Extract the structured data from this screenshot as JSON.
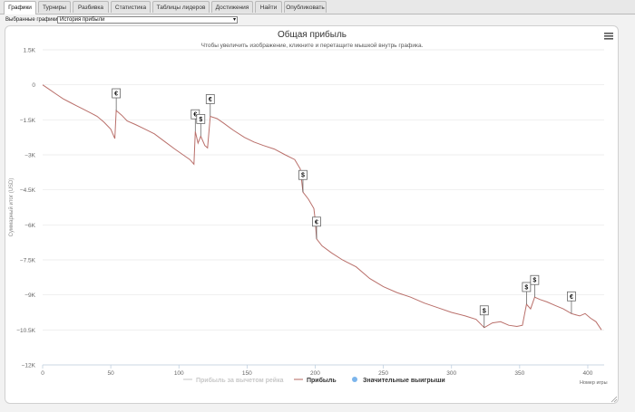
{
  "tabs": [
    {
      "label": "Графики",
      "active": true
    },
    {
      "label": "Турниры",
      "active": false
    },
    {
      "label": "Разбивка",
      "active": false
    },
    {
      "label": "Статистика",
      "active": false
    },
    {
      "label": "Таблицы лидеров",
      "active": false
    },
    {
      "label": "Достижения",
      "active": false
    },
    {
      "label": "Найти",
      "active": false
    },
    {
      "label": "Опубликовать",
      "active": false
    }
  ],
  "selector": {
    "label": "Выбранные графики:",
    "value": "История прибыли"
  },
  "chart_data": {
    "type": "line",
    "title": "Общая прибыль",
    "subtitle": "Чтобы увеличить изображение, кликните и перетащите мышкой внутрь графика.",
    "xlabel": "Номер игры",
    "ylabel": "Суммарный итог (USD)",
    "xlim": [
      0,
      412
    ],
    "ylim": [
      -12000,
      1500
    ],
    "xticks": [
      0,
      50,
      100,
      150,
      200,
      250,
      300,
      350,
      400
    ],
    "yticks": [
      1500,
      0,
      -1500,
      -3000,
      -4500,
      -6000,
      -7500,
      -9000,
      -10500,
      -12000
    ],
    "ytick_labels": [
      "1.5K",
      "0",
      "−1.5K",
      "−3K",
      "−4.5K",
      "−6K",
      "−7.5K",
      "−9K",
      "−10.5K",
      "−12K"
    ],
    "grid": true,
    "legend_placement": "bottom-center",
    "legend": [
      {
        "name": "Прибыль за вычетом рейка",
        "style": "line",
        "color": "#cfcfcf",
        "disabled": true
      },
      {
        "name": "Прибыль",
        "style": "line",
        "color": "#c0807a",
        "disabled": false
      },
      {
        "name": "Значительные выигрыши",
        "style": "dot",
        "color": "#7cb5ec",
        "disabled": false
      }
    ],
    "series": [
      {
        "name": "Прибыль",
        "color": "#b96f6a",
        "points": [
          [
            0,
            0
          ],
          [
            5,
            -200
          ],
          [
            10,
            -400
          ],
          [
            15,
            -600
          ],
          [
            20,
            -750
          ],
          [
            25,
            -900
          ],
          [
            30,
            -1050
          ],
          [
            35,
            -1200
          ],
          [
            40,
            -1350
          ],
          [
            45,
            -1600
          ],
          [
            50,
            -1900
          ],
          [
            53,
            -2300
          ],
          [
            54,
            -1100
          ],
          [
            58,
            -1300
          ],
          [
            62,
            -1550
          ],
          [
            68,
            -1700
          ],
          [
            75,
            -1900
          ],
          [
            82,
            -2100
          ],
          [
            90,
            -2450
          ],
          [
            97,
            -2750
          ],
          [
            103,
            -3000
          ],
          [
            108,
            -3200
          ],
          [
            111,
            -3400
          ],
          [
            112,
            -2000
          ],
          [
            114,
            -2500
          ],
          [
            116,
            -2200
          ],
          [
            119,
            -2600
          ],
          [
            121,
            -2700
          ],
          [
            123,
            -1350
          ],
          [
            128,
            -1450
          ],
          [
            133,
            -1650
          ],
          [
            140,
            -1950
          ],
          [
            148,
            -2250
          ],
          [
            155,
            -2450
          ],
          [
            162,
            -2600
          ],
          [
            170,
            -2750
          ],
          [
            178,
            -3000
          ],
          [
            185,
            -3200
          ],
          [
            189,
            -3600
          ],
          [
            191,
            -4600
          ],
          [
            195,
            -4900
          ],
          [
            199,
            -5300
          ],
          [
            200,
            -5800
          ],
          [
            201,
            -6600
          ],
          [
            205,
            -6900
          ],
          [
            212,
            -7200
          ],
          [
            220,
            -7500
          ],
          [
            230,
            -7800
          ],
          [
            240,
            -8300
          ],
          [
            250,
            -8650
          ],
          [
            260,
            -8900
          ],
          [
            270,
            -9100
          ],
          [
            280,
            -9350
          ],
          [
            290,
            -9550
          ],
          [
            300,
            -9750
          ],
          [
            310,
            -9900
          ],
          [
            318,
            -10050
          ],
          [
            324,
            -10400
          ],
          [
            330,
            -10200
          ],
          [
            336,
            -10150
          ],
          [
            342,
            -10300
          ],
          [
            348,
            -10350
          ],
          [
            352,
            -10300
          ],
          [
            355,
            -9400
          ],
          [
            358,
            -9600
          ],
          [
            361,
            -9100
          ],
          [
            365,
            -9200
          ],
          [
            370,
            -9300
          ],
          [
            376,
            -9450
          ],
          [
            382,
            -9600
          ],
          [
            388,
            -9800
          ],
          [
            394,
            -9900
          ],
          [
            398,
            -9800
          ],
          [
            402,
            -10000
          ],
          [
            406,
            -10150
          ],
          [
            410,
            -10500
          ]
        ]
      }
    ],
    "markers": [
      {
        "x": 54,
        "y": -1100,
        "symbol": "€"
      },
      {
        "x": 112,
        "y": -2000,
        "symbol": "€"
      },
      {
        "x": 116,
        "y": -2200,
        "symbol": "$"
      },
      {
        "x": 123,
        "y": -1350,
        "symbol": "€"
      },
      {
        "x": 191,
        "y": -4600,
        "symbol": "$"
      },
      {
        "x": 201,
        "y": -6600,
        "symbol": "€"
      },
      {
        "x": 324,
        "y": -10400,
        "symbol": "$"
      },
      {
        "x": 355,
        "y": -9400,
        "symbol": "$"
      },
      {
        "x": 361,
        "y": -9100,
        "symbol": "$"
      },
      {
        "x": 388,
        "y": -9800,
        "symbol": "€"
      }
    ]
  }
}
